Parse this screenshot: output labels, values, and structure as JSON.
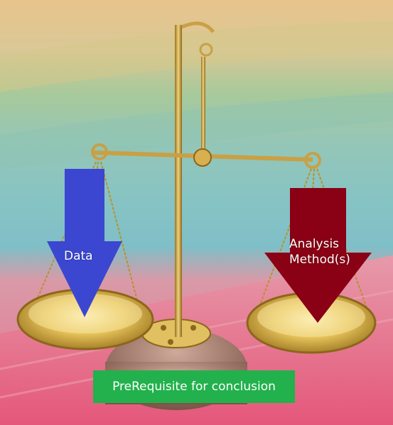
{
  "arrows": {
    "left": {
      "label": "Data",
      "color": "#3b47d1"
    },
    "right": {
      "label_line1": "Analysis",
      "label_line2": "Method(s)",
      "color": "#8a0014"
    }
  },
  "caption": {
    "text": "PreRequisite for conclusion",
    "color": "#22b14c"
  },
  "photo": {
    "subject": "brass balance scale on pink wooden table, pastel background"
  }
}
